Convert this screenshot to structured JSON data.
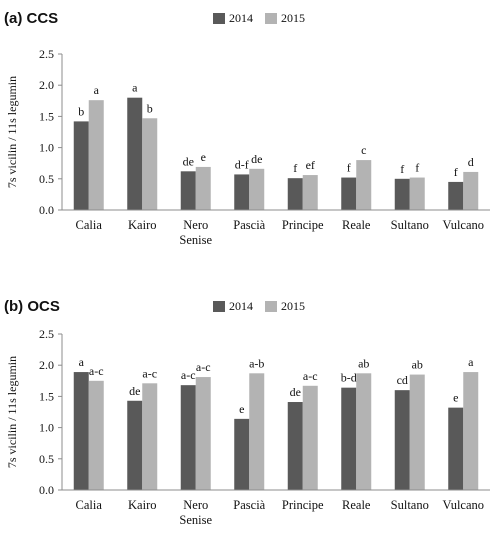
{
  "colors": {
    "s2014": "#595959",
    "s2015": "#b3b3b3",
    "axis": "#8c8c8c"
  },
  "chart_data": [
    {
      "type": "bar",
      "title": "(a) CCS",
      "ylabel": "7s vicilin / 11s legumin",
      "xlabel": "",
      "ylim": [
        0,
        2.5
      ],
      "yticks": [
        "0.0",
        "0.5",
        "1.0",
        "1.5",
        "2.0",
        "2.5"
      ],
      "categories": [
        "Calia",
        "Kairo",
        "Nero\nSenise",
        "Pascià",
        "Principe",
        "Reale",
        "Sultano",
        "Vulcano"
      ],
      "legend_position": "top",
      "grid": false,
      "series": [
        {
          "name": "2014",
          "values": [
            1.42,
            1.8,
            0.62,
            0.57,
            0.51,
            0.52,
            0.5,
            0.45
          ],
          "letters": [
            "b",
            "a",
            "de",
            "d-f",
            "f",
            "f",
            "f",
            "f"
          ]
        },
        {
          "name": "2015",
          "values": [
            1.76,
            1.47,
            0.69,
            0.66,
            0.56,
            0.8,
            0.52,
            0.61
          ],
          "letters": [
            "a",
            "b",
            "e",
            "de",
            "ef",
            "c",
            "f",
            "d"
          ]
        }
      ]
    },
    {
      "type": "bar",
      "title": "(b) OCS",
      "ylabel": "7s vicilin / 11s legumin",
      "xlabel": "",
      "ylim": [
        0,
        2.5
      ],
      "yticks": [
        "0.0",
        "0.5",
        "1.0",
        "1.5",
        "2.0",
        "2.5"
      ],
      "categories": [
        "Calia",
        "Kairo",
        "Nero\nSenise",
        "Pascià",
        "Principe",
        "Reale",
        "Sultano",
        "Vulcano"
      ],
      "legend_position": "top",
      "grid": false,
      "series": [
        {
          "name": "2014",
          "values": [
            1.89,
            1.43,
            1.68,
            1.14,
            1.41,
            1.64,
            1.6,
            1.32
          ],
          "letters": [
            "a",
            "de",
            "a-c",
            "e",
            "de",
            "b-d",
            "cd",
            "e"
          ]
        },
        {
          "name": "2015",
          "values": [
            1.75,
            1.71,
            1.81,
            1.87,
            1.67,
            1.87,
            1.85,
            1.89
          ],
          "letters": [
            "a-c",
            "a-c",
            "a-c",
            "a-b",
            "a-c",
            "ab",
            "ab",
            "a"
          ]
        }
      ]
    }
  ]
}
